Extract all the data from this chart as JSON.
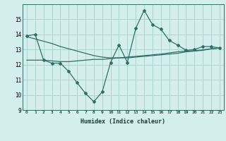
{
  "xlabel": "Humidex (Indice chaleur)",
  "x": [
    0,
    1,
    2,
    3,
    4,
    5,
    6,
    7,
    8,
    9,
    10,
    11,
    12,
    13,
    14,
    15,
    16,
    17,
    18,
    19,
    20,
    21,
    22,
    23
  ],
  "line_main": [
    13.9,
    14.0,
    12.3,
    12.1,
    12.1,
    11.55,
    10.8,
    10.1,
    9.55,
    10.2,
    12.15,
    13.3,
    12.15,
    14.4,
    15.6,
    14.65,
    14.35,
    13.6,
    13.3,
    12.95,
    13.0,
    13.2,
    13.2,
    13.1
  ],
  "line_smooth1": [
    13.85,
    13.7,
    13.55,
    13.4,
    13.2,
    13.05,
    12.9,
    12.75,
    12.6,
    12.5,
    12.45,
    12.45,
    12.45,
    12.5,
    12.55,
    12.6,
    12.65,
    12.7,
    12.75,
    12.85,
    12.9,
    12.95,
    13.05,
    13.1
  ],
  "line_smooth2": [
    12.3,
    12.3,
    12.3,
    12.25,
    12.2,
    12.2,
    12.25,
    12.3,
    12.35,
    12.35,
    12.4,
    12.45,
    12.5,
    12.55,
    12.6,
    12.65,
    12.7,
    12.78,
    12.85,
    12.9,
    12.92,
    12.98,
    13.05,
    13.1
  ],
  "ylim": [
    9,
    16
  ],
  "xlim": [
    -0.5,
    23.5
  ],
  "yticks": [
    9,
    10,
    11,
    12,
    13,
    14,
    15
  ],
  "xticks": [
    0,
    1,
    2,
    3,
    4,
    5,
    6,
    7,
    8,
    9,
    10,
    11,
    12,
    13,
    14,
    15,
    16,
    17,
    18,
    19,
    20,
    21,
    22,
    23
  ],
  "color": "#2d7068",
  "bg_color": "#d4eeed",
  "grid_color": "#aed4d0"
}
